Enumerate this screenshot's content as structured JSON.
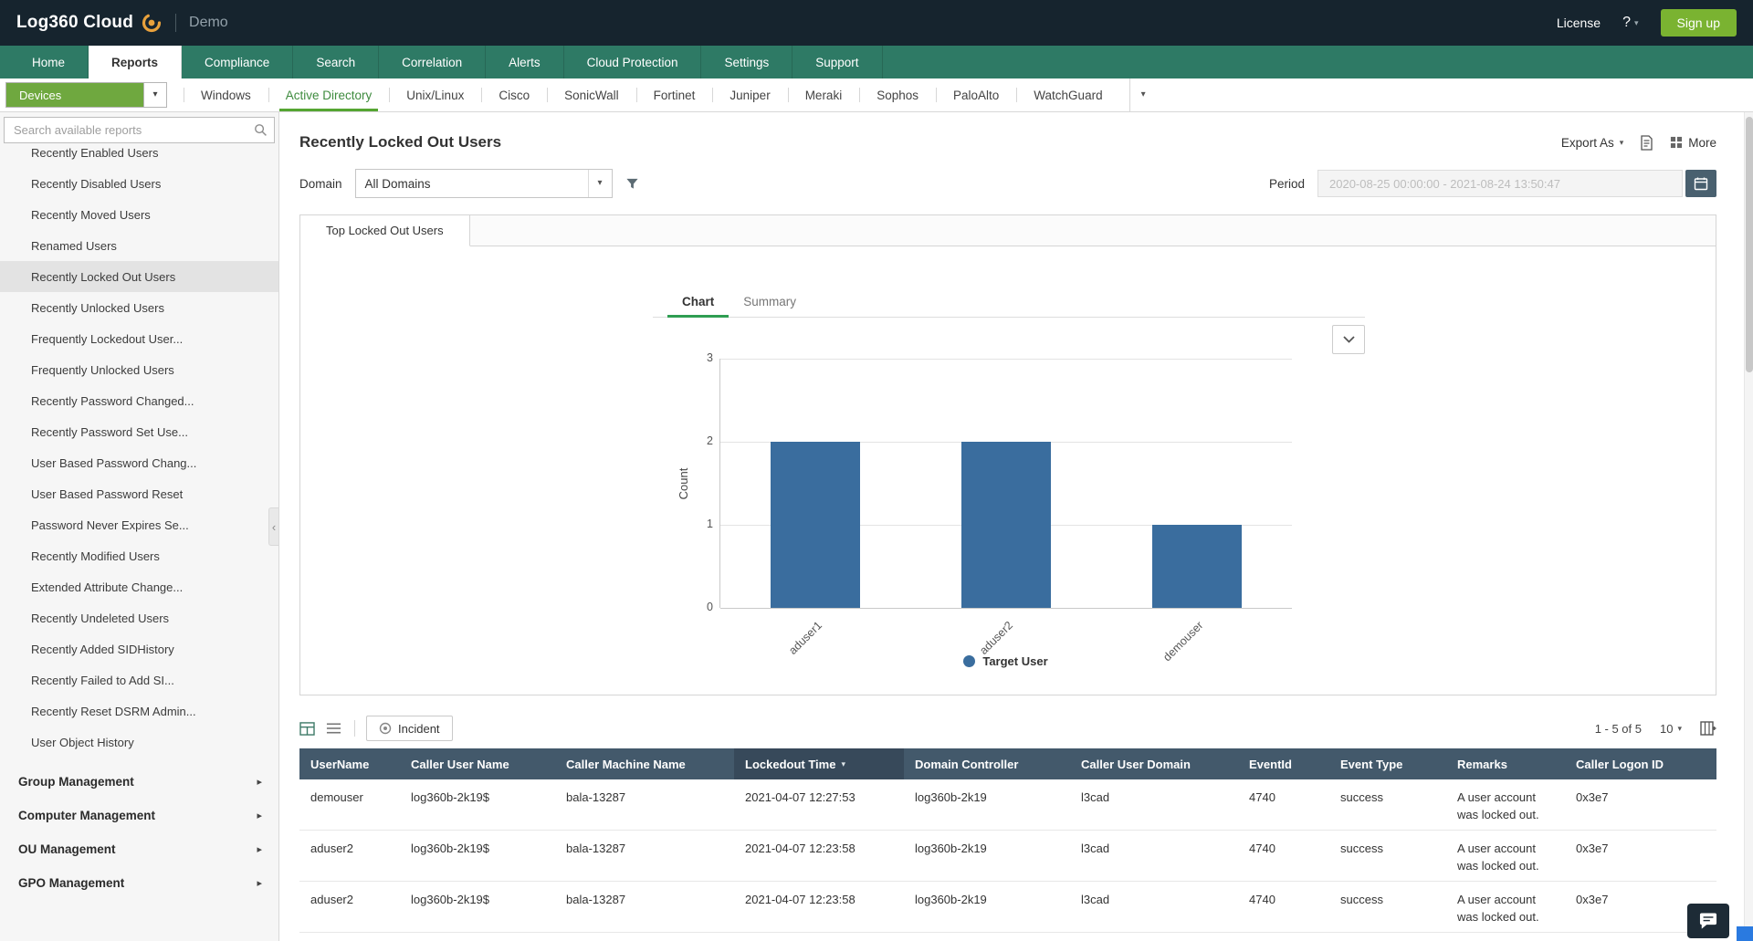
{
  "icons": {
    "caret_down": "▾",
    "arrow_right": "▸",
    "chevron_left": "‹",
    "help": "?"
  },
  "colors": {
    "brand_green": "#7ab331",
    "nav_teal": "#2e7a65",
    "device_green": "#6fa83f",
    "table_header": "#43596b"
  },
  "header": {
    "app_name": "Log360 Cloud",
    "env_label": "Demo",
    "license_link": "License",
    "signup_button": "Sign up"
  },
  "main_nav": {
    "tabs": [
      {
        "label": "Home"
      },
      {
        "label": "Reports",
        "active": true
      },
      {
        "label": "Compliance"
      },
      {
        "label": "Search"
      },
      {
        "label": "Correlation"
      },
      {
        "label": "Alerts"
      },
      {
        "label": "Cloud Protection"
      },
      {
        "label": "Settings"
      },
      {
        "label": "Support"
      }
    ]
  },
  "device_nav": {
    "selector_label": "Devices",
    "tabs": [
      {
        "label": "Windows"
      },
      {
        "label": "Active Directory",
        "active": true
      },
      {
        "label": "Unix/Linux"
      },
      {
        "label": "Cisco"
      },
      {
        "label": "SonicWall"
      },
      {
        "label": "Fortinet"
      },
      {
        "label": "Juniper"
      },
      {
        "label": "Meraki"
      },
      {
        "label": "Sophos"
      },
      {
        "label": "PaloAlto"
      },
      {
        "label": "WatchGuard"
      }
    ]
  },
  "sidebar": {
    "search_placeholder": "Search available reports",
    "reports": [
      {
        "label": "Recently Enabled Users"
      },
      {
        "label": "Recently Disabled Users"
      },
      {
        "label": "Recently Moved Users"
      },
      {
        "label": "Renamed Users"
      },
      {
        "label": "Recently Locked Out Users",
        "selected": true
      },
      {
        "label": "Recently Unlocked Users"
      },
      {
        "label": "Frequently Lockedout User..."
      },
      {
        "label": "Frequently Unlocked Users"
      },
      {
        "label": "Recently Password Changed..."
      },
      {
        "label": "Recently Password Set Use..."
      },
      {
        "label": "User Based Password Chang..."
      },
      {
        "label": "User Based Password Reset"
      },
      {
        "label": "Password Never Expires Se..."
      },
      {
        "label": "Recently Modified Users"
      },
      {
        "label": "Extended Attribute Change..."
      },
      {
        "label": "Recently Undeleted Users"
      },
      {
        "label": "Recently Added SIDHistory"
      },
      {
        "label": "Recently Failed to Add SI..."
      },
      {
        "label": "Recently Reset DSRM Admin..."
      },
      {
        "label": "User Object History"
      }
    ],
    "groups": [
      {
        "label": "Group Management"
      },
      {
        "label": "Computer Management"
      },
      {
        "label": "OU Management"
      },
      {
        "label": "GPO Management"
      }
    ]
  },
  "report": {
    "title": "Recently Locked Out Users",
    "export_as_label": "Export As",
    "more_label": "More",
    "domain_label": "Domain",
    "domain_value": "All Domains",
    "period_label": "Period",
    "period_value": "2020-08-25 00:00:00 - 2021-08-24 13:50:47",
    "view_tab": "Top Locked Out Users",
    "chart_tab": "Chart",
    "summary_tab": "Summary"
  },
  "chart_data": {
    "type": "bar",
    "title": "Top Locked Out Users",
    "categories": [
      "aduser1",
      "aduser2",
      "demouser"
    ],
    "values": [
      2,
      2,
      1
    ],
    "xlabel": "",
    "ylabel": "Count",
    "ylim": [
      0,
      3
    ],
    "y_ticks": [
      3,
      2,
      1,
      0
    ],
    "grid": true,
    "legend": "Target User",
    "legend_position": "bottom",
    "bar_color": "#3a6d9e"
  },
  "table": {
    "incident_button": "Incident",
    "pagination": "1 - 5 of 5",
    "page_size": "10",
    "columns": [
      {
        "label": "UserName"
      },
      {
        "label": "Caller User Name"
      },
      {
        "label": "Caller Machine Name"
      },
      {
        "label": "Lockedout Time",
        "sorted": true
      },
      {
        "label": "Domain Controller"
      },
      {
        "label": "Caller User Domain"
      },
      {
        "label": "EventId"
      },
      {
        "label": "Event Type"
      },
      {
        "label": "Remarks"
      },
      {
        "label": "Caller Logon ID"
      }
    ],
    "rows": [
      {
        "username": "demouser",
        "caller_user_name": "log360b-2k19$",
        "caller_machine_name": "bala-13287",
        "lockedout_time": "2021-04-07 12:27:53",
        "domain_controller": "log360b-2k19",
        "caller_user_domain": "l3cad",
        "event_id": "4740",
        "event_type": "success",
        "remarks": "A user account was locked out.",
        "caller_logon_id": "0x3e7"
      },
      {
        "username": "aduser2",
        "caller_user_name": "log360b-2k19$",
        "caller_machine_name": "bala-13287",
        "lockedout_time": "2021-04-07 12:23:58",
        "domain_controller": "log360b-2k19",
        "caller_user_domain": "l3cad",
        "event_id": "4740",
        "event_type": "success",
        "remarks": "A user account was locked out.",
        "caller_logon_id": "0x3e7"
      },
      {
        "username": "aduser2",
        "caller_user_name": "log360b-2k19$",
        "caller_machine_name": "bala-13287",
        "lockedout_time": "2021-04-07 12:23:58",
        "domain_controller": "log360b-2k19",
        "caller_user_domain": "l3cad",
        "event_id": "4740",
        "event_type": "success",
        "remarks": "A user account was locked out.",
        "caller_logon_id": "0x3e7"
      }
    ]
  }
}
